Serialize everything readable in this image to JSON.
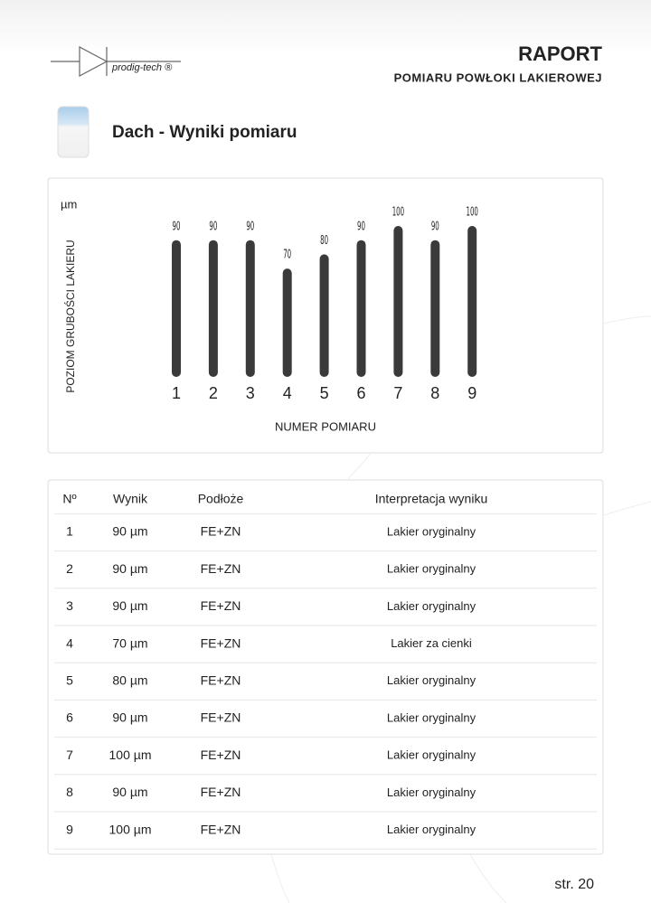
{
  "header": {
    "logo": "prodig-tech ®",
    "title": "RAPORT",
    "subtitle": "POMIARU POWŁOKI LAKIEROWEJ"
  },
  "section": {
    "title": "Dach - Wyniki pomiaru"
  },
  "chart_data": {
    "type": "bar",
    "unit": "µm",
    "y_label": "POZIOM GRUBOŚCI LAKIERU",
    "x_label": "NUMER POMIARU",
    "categories": [
      "1",
      "2",
      "3",
      "4",
      "5",
      "6",
      "7",
      "8",
      "9"
    ],
    "values": [
      90,
      90,
      90,
      70,
      80,
      90,
      100,
      90,
      100
    ],
    "color": "#3a3a3a",
    "ylim": [
      0,
      100
    ]
  },
  "table": {
    "header": [
      "Nº",
      "Wynik",
      "Podłoże",
      "Interpretacja wyniku"
    ],
    "rows": [
      [
        "1",
        "90 µm",
        "FE+ZN",
        "Lakier oryginalny"
      ],
      [
        "2",
        "90 µm",
        "FE+ZN",
        "Lakier oryginalny"
      ],
      [
        "3",
        "90 µm",
        "FE+ZN",
        "Lakier oryginalny"
      ],
      [
        "4",
        "70 µm",
        "FE+ZN",
        "Lakier za cienki"
      ],
      [
        "5",
        "80 µm",
        "FE+ZN",
        "Lakier oryginalny"
      ],
      [
        "6",
        "90 µm",
        "FE+ZN",
        "Lakier oryginalny"
      ],
      [
        "7",
        "100 µm",
        "FE+ZN",
        "Lakier oryginalny"
      ],
      [
        "8",
        "90 µm",
        "FE+ZN",
        "Lakier oryginalny"
      ],
      [
        "9",
        "100 µm",
        "FE+ZN",
        "Lakier oryginalny"
      ]
    ]
  },
  "footer": {
    "page": "str. 20"
  }
}
